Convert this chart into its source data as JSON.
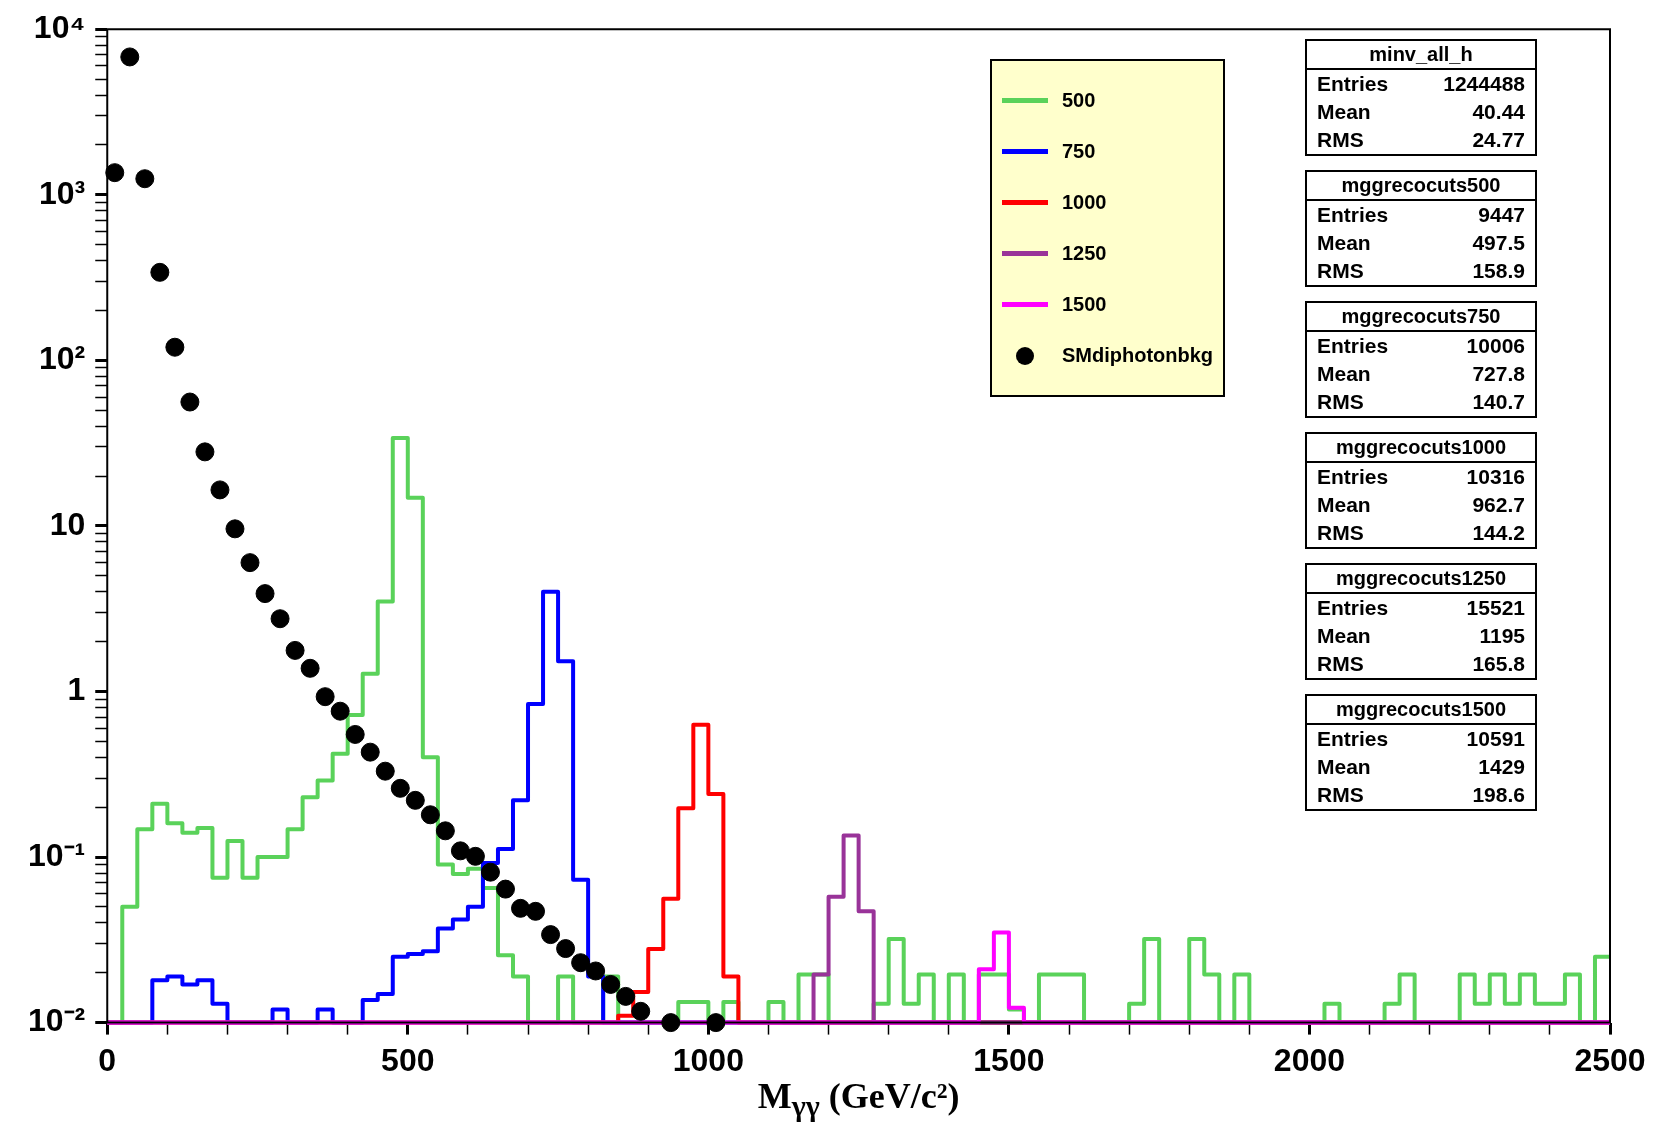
{
  "chart_data": {
    "type": "histogram",
    "xlabel": "M$_{γγ}$ (GeV/c²)",
    "bins": [
      0,
      25,
      50,
      75,
      100,
      125,
      150,
      175,
      200,
      225,
      250,
      275,
      300,
      325,
      350,
      375,
      400,
      425,
      450,
      475,
      500,
      525,
      550,
      575,
      600,
      625,
      650,
      675,
      700,
      725,
      750,
      775,
      800,
      825,
      850,
      875,
      900,
      925,
      950,
      975,
      1000,
      1025,
      1050,
      1075,
      1100,
      1125,
      1150,
      1175,
      1200,
      1225,
      1250,
      1275,
      1300,
      1325,
      1350,
      1375,
      1400,
      1425,
      1450,
      1475,
      1500,
      1525,
      1550,
      1575,
      1600,
      1625,
      1650,
      1675,
      1700,
      1725,
      1750,
      1775,
      1800,
      1825,
      1850,
      1875,
      1900,
      1925,
      1950,
      1975,
      2000,
      2025,
      2050,
      2075,
      2100,
      2125,
      2150,
      2175,
      2200,
      2225,
      2250,
      2275,
      2300,
      2325,
      2350,
      2375,
      2400,
      2425,
      2450,
      2475,
      2500
    ],
    "series": [
      {
        "name": "500",
        "color": "#5ad25a",
        "values": [
          0.01,
          0.05,
          0.147,
          0.21,
          0.16,
          0.14,
          0.15,
          0.075,
          0.125,
          0.075,
          0.1,
          0.1,
          0.147,
          0.23,
          0.29,
          0.42,
          0.72,
          1.28,
          3.5,
          34,
          14.8,
          0.4,
          0.09,
          0.079,
          0.085,
          0.065,
          0.0255,
          0.019,
          0.01,
          0.01,
          0.019,
          0.01,
          0.01,
          0.019,
          0.01,
          0.01,
          0.01,
          0.01,
          0.0133,
          0.0133,
          0.01,
          0.0133,
          0.01,
          0.01,
          0.0133,
          0.01,
          0.0195,
          0.0195,
          0.01,
          0.01,
          0.01,
          0.013,
          0.032,
          0.013,
          0.0195,
          0.01,
          0.0195,
          0.01,
          0.0195,
          0.0195,
          0.012,
          0.01,
          0.0195,
          0.0195,
          0.0195,
          0.01,
          0.01,
          0.01,
          0.013,
          0.032,
          0.01,
          0.01,
          0.032,
          0.0195,
          0.01,
          0.0195,
          0.01,
          0.01,
          0.01,
          0.01,
          0.01,
          0.013,
          0.01,
          0.01,
          0.01,
          0.013,
          0.0195,
          0.01,
          0.01,
          0.01,
          0.0195,
          0.013,
          0.0195,
          0.013,
          0.0195,
          0.013,
          0.013,
          0.0195,
          0.01,
          0.025
        ]
      },
      {
        "name": "750",
        "color": "#0000ff",
        "values": [
          0.01,
          0.01,
          0.01,
          0.018,
          0.019,
          0.017,
          0.018,
          0.013,
          0.01,
          0.01,
          0.01,
          0.012,
          0.01,
          0.01,
          0.012,
          0.01,
          0.01,
          0.0137,
          0.0149,
          0.025,
          0.026,
          0.027,
          0.037,
          0.042,
          0.05,
          0.092,
          0.112,
          0.22,
          0.84,
          4.0,
          1.52,
          0.073,
          0.019,
          0.01,
          0.01,
          0.01,
          0.01,
          0.01,
          0.01,
          0.01,
          0.01,
          0.01,
          0.01,
          0.01,
          0.01,
          0.01,
          0.01,
          0.01,
          0.01,
          0.01,
          0.01,
          0.01,
          0.01,
          0.01,
          0.01,
          0.01,
          0.01,
          0.01,
          0.01,
          0.01,
          0.01,
          0.01,
          0.01,
          0.01,
          0.01,
          0.01,
          0.01,
          0.01,
          0.01,
          0.01,
          0.01,
          0.01,
          0.01,
          0.01,
          0.01,
          0.01,
          0.01,
          0.01,
          0.01,
          0.01,
          0.01,
          0.01,
          0.01,
          0.01,
          0.01,
          0.01,
          0.01,
          0.01,
          0.01,
          0.01,
          0.01,
          0.01,
          0.01,
          0.01,
          0.01,
          0.01,
          0.01,
          0.01,
          0.01,
          0.01
        ]
      },
      {
        "name": "1000",
        "color": "#ff0000",
        "values": [
          0.01,
          0.01,
          0.01,
          0.01,
          0.01,
          0.01,
          0.01,
          0.01,
          0.01,
          0.01,
          0.01,
          0.01,
          0.01,
          0.01,
          0.01,
          0.01,
          0.01,
          0.01,
          0.01,
          0.01,
          0.01,
          0.01,
          0.01,
          0.01,
          0.01,
          0.01,
          0.01,
          0.01,
          0.01,
          0.01,
          0.01,
          0.01,
          0.01,
          0.01,
          0.011,
          0.0153,
          0.0278,
          0.056,
          0.197,
          0.63,
          0.24,
          0.019,
          0.01,
          0.01,
          0.01,
          0.01,
          0.01,
          0.01,
          0.01,
          0.01,
          0.01,
          0.01,
          0.01,
          0.01,
          0.01,
          0.01,
          0.01,
          0.01,
          0.01,
          0.01,
          0.01,
          0.01,
          0.01,
          0.01,
          0.01,
          0.01,
          0.01,
          0.01,
          0.01,
          0.01,
          0.01,
          0.01,
          0.01,
          0.01,
          0.01,
          0.01,
          0.01,
          0.01,
          0.01,
          0.01,
          0.01,
          0.01,
          0.01,
          0.01,
          0.01,
          0.01,
          0.01,
          0.01,
          0.01,
          0.01,
          0.01,
          0.01,
          0.01,
          0.01,
          0.01,
          0.01,
          0.01,
          0.01,
          0.01,
          0.01
        ]
      },
      {
        "name": "1250",
        "color": "#993399",
        "values": [
          0.01,
          0.01,
          0.01,
          0.01,
          0.01,
          0.01,
          0.01,
          0.01,
          0.01,
          0.01,
          0.01,
          0.01,
          0.01,
          0.01,
          0.01,
          0.01,
          0.01,
          0.01,
          0.01,
          0.01,
          0.01,
          0.01,
          0.01,
          0.01,
          0.01,
          0.01,
          0.01,
          0.01,
          0.01,
          0.01,
          0.01,
          0.01,
          0.01,
          0.01,
          0.01,
          0.01,
          0.01,
          0.01,
          0.01,
          0.01,
          0.01,
          0.01,
          0.01,
          0.01,
          0.01,
          0.01,
          0.01,
          0.0195,
          0.0575,
          0.135,
          0.047,
          0.01,
          0.01,
          0.01,
          0.01,
          0.01,
          0.01,
          0.01,
          0.01,
          0.01,
          0.01,
          0.01,
          0.01,
          0.01,
          0.01,
          0.01,
          0.01,
          0.01,
          0.01,
          0.01,
          0.01,
          0.01,
          0.01,
          0.01,
          0.01,
          0.01,
          0.01,
          0.01,
          0.01,
          0.01,
          0.01,
          0.01,
          0.01,
          0.01,
          0.01,
          0.01,
          0.01,
          0.01,
          0.01,
          0.01,
          0.01,
          0.01,
          0.01,
          0.01,
          0.01,
          0.01,
          0.01,
          0.01,
          0.01,
          0.01
        ]
      },
      {
        "name": "1500",
        "color": "#ff00ff",
        "values": [
          0.01,
          0.01,
          0.01,
          0.01,
          0.01,
          0.01,
          0.01,
          0.01,
          0.01,
          0.01,
          0.01,
          0.01,
          0.01,
          0.01,
          0.01,
          0.01,
          0.01,
          0.01,
          0.01,
          0.01,
          0.01,
          0.01,
          0.01,
          0.01,
          0.01,
          0.01,
          0.01,
          0.01,
          0.01,
          0.01,
          0.01,
          0.01,
          0.01,
          0.01,
          0.01,
          0.01,
          0.01,
          0.01,
          0.01,
          0.01,
          0.01,
          0.01,
          0.01,
          0.01,
          0.01,
          0.01,
          0.01,
          0.01,
          0.01,
          0.01,
          0.01,
          0.01,
          0.01,
          0.01,
          0.01,
          0.01,
          0.01,
          0.01,
          0.021,
          0.035,
          0.0123,
          0.01,
          0.01,
          0.01,
          0.01,
          0.01,
          0.01,
          0.01,
          0.01,
          0.01,
          0.01,
          0.01,
          0.01,
          0.01,
          0.01,
          0.01,
          0.01,
          0.01,
          0.01,
          0.01,
          0.01,
          0.01,
          0.01,
          0.01,
          0.01,
          0.01,
          0.01,
          0.01,
          0.01,
          0.01,
          0.01,
          0.01,
          0.01,
          0.01,
          0.01,
          0.01,
          0.01,
          0.01,
          0.01,
          0.01
        ]
      },
      {
        "name": "SMdiphotonbkg",
        "type": "scatter",
        "marker": "circle",
        "color": "#000000",
        "x": [
          12.5,
          37.5,
          62.5,
          87.5,
          112.5,
          137.5,
          162.5,
          187.5,
          212.5,
          237.5,
          262.5,
          287.5,
          312.5,
          337.5,
          362.5,
          387.5,
          412.5,
          437.5,
          462.5,
          487.5,
          512.5,
          537.5,
          562.5,
          587.5,
          612.5,
          637.5,
          662.5,
          687.5,
          712.5,
          737.5,
          762.5,
          787.5,
          812.5,
          837.5,
          862.5,
          887.5,
          937.5,
          1012.5
        ],
        "values": [
          1360,
          6800,
          1250,
          340,
          120,
          56,
          28,
          16.5,
          9.6,
          6.0,
          3.9,
          2.75,
          1.77,
          1.38,
          0.93,
          0.76,
          0.55,
          0.43,
          0.33,
          0.26,
          0.22,
          0.18,
          0.144,
          0.109,
          0.101,
          0.081,
          0.064,
          0.049,
          0.047,
          0.034,
          0.028,
          0.023,
          0.0205,
          0.017,
          0.0144,
          0.0117,
          0.01,
          0.01
        ]
      }
    ],
    "xlim": [
      0,
      2500
    ],
    "ylim": [
      0.01,
      10000
    ],
    "xticks": [
      0,
      {
        "value": 100,
        "label": null
      },
      {
        "value": 200,
        "label": null
      },
      {
        "value": 300,
        "label": null
      },
      {
        "value": 400,
        "label": null
      },
      500,
      {
        "value": 600,
        "label": null
      },
      {
        "value": 700,
        "label": null
      },
      {
        "value": 800,
        "label": null
      },
      {
        "value": 900,
        "label": null
      },
      1000,
      {
        "value": 1100,
        "label": null
      },
      {
        "value": 1200,
        "label": null
      },
      {
        "value": 1300,
        "label": null
      },
      {
        "value": 1400,
        "label": null
      },
      1500,
      {
        "value": 1600,
        "label": null
      },
      {
        "value": 1700,
        "label": null
      },
      {
        "value": 1800,
        "label": null
      },
      {
        "value": 1900,
        "label": null
      },
      2000,
      {
        "value": 2100,
        "label": null
      },
      {
        "value": 2200,
        "label": null
      },
      {
        "value": 2300,
        "label": null
      },
      {
        "value": 2400,
        "label": null
      },
      2500
    ],
    "yticks": [
      {
        "value": 0.01,
        "label": "10⁻²"
      },
      {
        "value": 0.02,
        "label": null
      },
      {
        "value": 0.03,
        "label": null
      },
      {
        "value": 0.04,
        "label": null
      },
      {
        "value": 0.05,
        "label": null
      },
      {
        "value": 0.06,
        "label": null
      },
      {
        "value": 0.07,
        "label": null
      },
      {
        "value": 0.08,
        "label": null
      },
      {
        "value": 0.09,
        "label": null
      },
      {
        "value": 0.1,
        "label": "10⁻¹"
      },
      {
        "value": 0.2,
        "label": null
      },
      {
        "value": 0.3,
        "label": null
      },
      {
        "value": 0.4,
        "label": null
      },
      {
        "value": 0.5,
        "label": null
      },
      {
        "value": 0.6,
        "label": null
      },
      {
        "value": 0.7,
        "label": null
      },
      {
        "value": 0.8,
        "label": null
      },
      {
        "value": 0.9,
        "label": null
      },
      1,
      {
        "value": 2,
        "label": null
      },
      {
        "value": 3,
        "label": null
      },
      {
        "value": 4,
        "label": null
      },
      {
        "value": 5,
        "label": null
      },
      {
        "value": 6,
        "label": null
      },
      {
        "value": 7,
        "label": null
      },
      {
        "value": 8,
        "label": null
      },
      {
        "value": 9,
        "label": null
      },
      10,
      {
        "value": 20,
        "label": null
      },
      {
        "value": 30,
        "label": null
      },
      {
        "value": 40,
        "label": null
      },
      {
        "value": 50,
        "label": null
      },
      {
        "value": 60,
        "label": null
      },
      {
        "value": 70,
        "label": null
      },
      {
        "value": 80,
        "label": null
      },
      {
        "value": 90,
        "label": null
      },
      {
        "value": 100,
        "label": "10²"
      },
      {
        "value": 200,
        "label": null
      },
      {
        "value": 300,
        "label": null
      },
      {
        "value": 400,
        "label": null
      },
      {
        "value": 500,
        "label": null
      },
      {
        "value": 600,
        "label": null
      },
      {
        "value": 700,
        "label": null
      },
      {
        "value": 800,
        "label": null
      },
      {
        "value": 900,
        "label": null
      },
      {
        "value": 1000,
        "label": "10³"
      },
      {
        "value": 2000,
        "label": null
      },
      {
        "value": 3000,
        "label": null
      },
      {
        "value": 4000,
        "label": null
      },
      {
        "value": 5000,
        "label": null
      },
      {
        "value": 6000,
        "label": null
      },
      {
        "value": 7000,
        "label": null
      },
      {
        "value": 8000,
        "label": null
      },
      {
        "value": 9000,
        "label": null
      },
      {
        "value": 10000,
        "label": "10⁴"
      }
    ],
    "log": true,
    "legend": "top right",
    "annotations": [
      "minv_all_h",
      "Entries 1244488",
      "Mean 40.44",
      "RMS 24.77",
      "mggrecocuts500",
      "Entries 9447",
      "Mean 497.5",
      "RMS 158.9",
      "mggrecocuts750",
      "Entries 10006",
      "Mean 727.8",
      "RMS 140.7",
      "mggrecocuts1000",
      "Entries 10316",
      "Mean 962.7",
      "RMS 144.2",
      "mggrecocuts1250",
      "Entries 15521",
      "Mean 1195",
      "RMS 165.8",
      "mggrecocuts1500",
      "Entries 10591",
      "Mean 1429",
      "RMS 198.6"
    ]
  }
}
